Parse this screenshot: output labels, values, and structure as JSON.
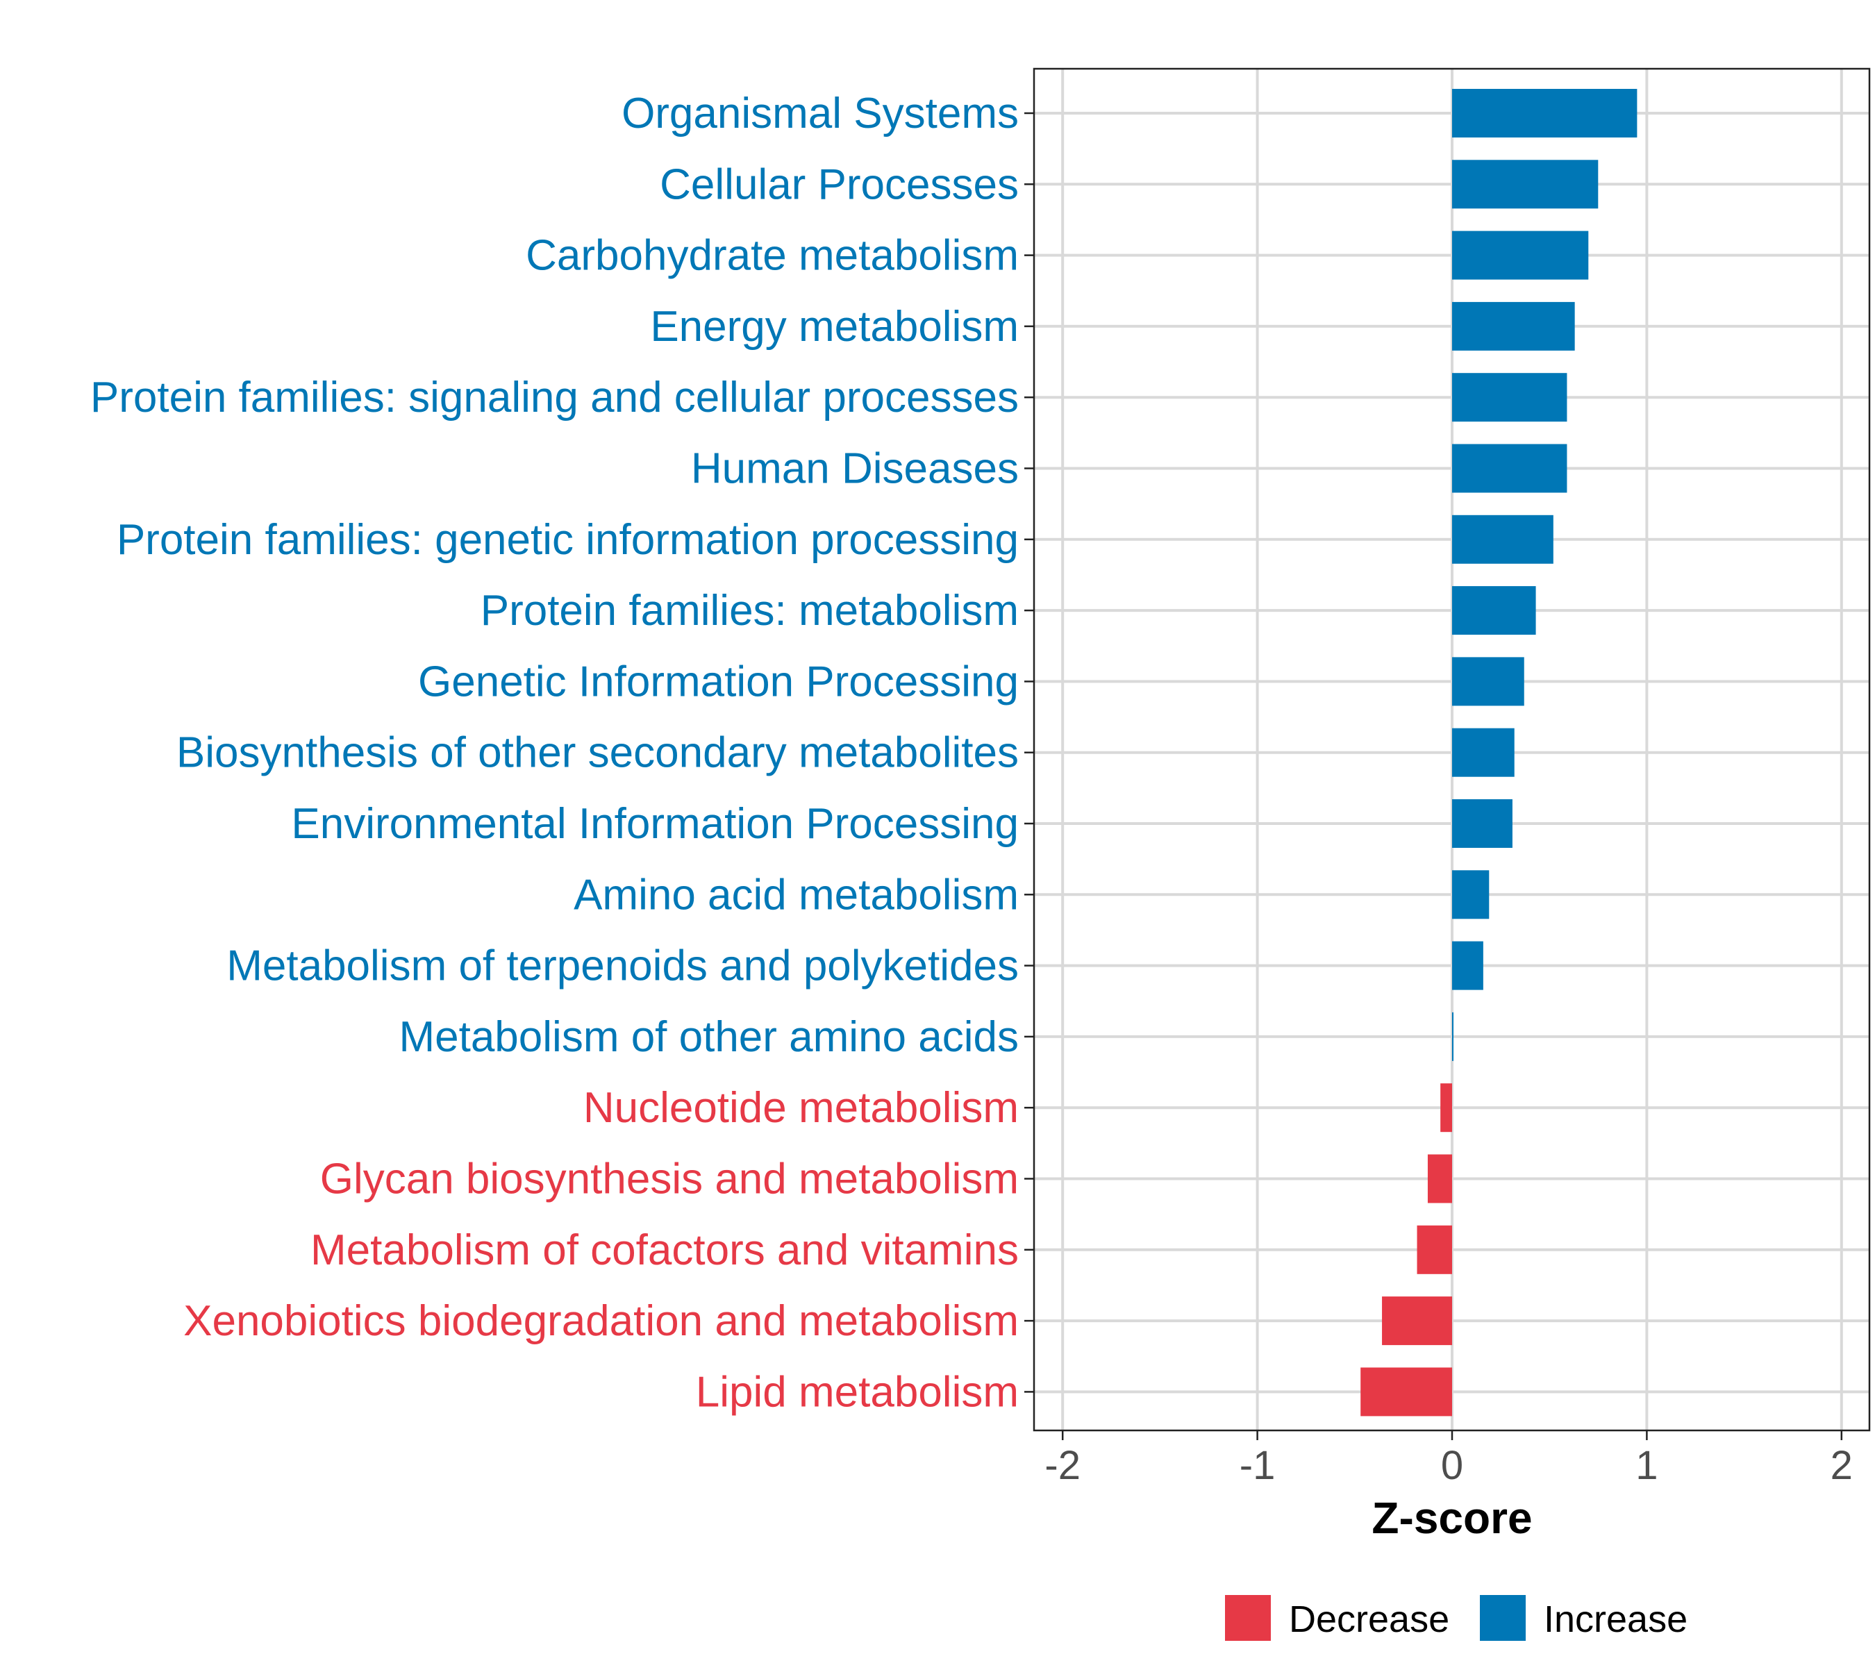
{
  "chart_data": {
    "type": "bar",
    "orientation": "horizontal",
    "title": "",
    "xlabel": "Z-score",
    "ylabel": "",
    "xlim": [
      -2.13,
      2.13
    ],
    "xticks": [
      -2,
      -1,
      0,
      1,
      2
    ],
    "xtick_labels": [
      "-2",
      "-1",
      "0",
      "1",
      "2"
    ],
    "grid": true,
    "legend_position": "bottom",
    "legend": [
      {
        "label": "Decrease",
        "color": "#E63946"
      },
      {
        "label": "Increase",
        "color": "#0077B6"
      }
    ],
    "categories": [
      "Organismal Systems",
      "Cellular Processes",
      "Carbohydrate metabolism",
      "Energy metabolism",
      "Protein families: signaling and cellular processes",
      "Human Diseases",
      "Protein families: genetic information processing",
      "Protein families: metabolism",
      "Genetic Information Processing",
      "Biosynthesis of other secondary metabolites",
      "Environmental Information Processing",
      "Amino acid metabolism",
      "Metabolism of terpenoids and polyketides",
      "Metabolism of other amino acids",
      "Nucleotide metabolism",
      "Glycan biosynthesis and metabolism",
      "Metabolism of cofactors and vitamins",
      "Xenobiotics biodegradation and metabolism",
      "Lipid metabolism"
    ],
    "values": [
      0.95,
      0.75,
      0.7,
      0.63,
      0.59,
      0.59,
      0.52,
      0.43,
      0.37,
      0.32,
      0.31,
      0.19,
      0.16,
      0.005,
      -0.06,
      -0.125,
      -0.18,
      -0.36,
      -0.47
    ]
  }
}
